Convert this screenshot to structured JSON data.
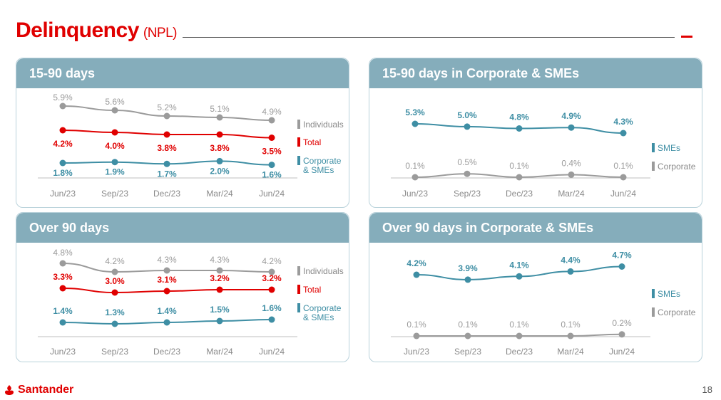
{
  "header": {
    "title": "Delinquency",
    "subtitle": "(NPL)"
  },
  "footer": {
    "brand": "Santander",
    "page_number": "18"
  },
  "colors": {
    "individuals": "#9b9b9b",
    "total": "#e00000",
    "corporate": "#3e8ea4",
    "axis": "#bfbfbf",
    "header_bg": "#85adbb"
  },
  "chart_data": [
    {
      "type": "line",
      "title": "15-90 days",
      "categories": [
        "Jun/23",
        "Sep/23",
        "Dec/23",
        "Mar/24",
        "Jun/24"
      ],
      "series": [
        {
          "name": "Individuals",
          "values": [
            5.9,
            5.6,
            5.2,
            5.1,
            4.9
          ],
          "labels": [
            "5.9%",
            "5.6%",
            "5.2%",
            "5.1%",
            "4.9%"
          ]
        },
        {
          "name": "Total",
          "values": [
            4.2,
            4.0,
            3.8,
            3.8,
            3.5
          ],
          "labels": [
            "4.2%",
            "4.0%",
            "3.8%",
            "3.8%",
            "3.5%"
          ]
        },
        {
          "name": "Corporate & SMEs",
          "values": [
            1.8,
            1.9,
            1.7,
            2.0,
            1.6
          ],
          "labels": [
            "1.8%",
            "1.9%",
            "1.7%",
            "2.0%",
            "1.6%"
          ]
        }
      ],
      "legend": [
        "Individuals",
        "Total",
        "Corporate",
        "& SMEs"
      ]
    },
    {
      "type": "line",
      "title": "15-90 days in Corporate & SMEs",
      "categories": [
        "Jun/23",
        "Sep/23",
        "Dec/23",
        "Mar/24",
        "Jun/24"
      ],
      "series": [
        {
          "name": "SMEs",
          "values": [
            5.3,
            5.0,
            4.8,
            4.9,
            4.3
          ],
          "labels": [
            "5.3%",
            "5.0%",
            "4.8%",
            "4.9%",
            "4.3%"
          ]
        },
        {
          "name": "Corporate",
          "values": [
            0.1,
            0.5,
            0.1,
            0.4,
            0.1
          ],
          "labels": [
            "0.1%",
            "0.5%",
            "0.1%",
            "0.4%",
            "0.1%"
          ]
        }
      ],
      "legend": [
        "SMEs",
        "Corporate"
      ]
    },
    {
      "type": "line",
      "title": "Over 90 days",
      "categories": [
        "Jun/23",
        "Sep/23",
        "Dec/23",
        "Mar/24",
        "Jun/24"
      ],
      "series": [
        {
          "name": "Individuals",
          "values": [
            4.8,
            4.2,
            4.3,
            4.3,
            4.2
          ],
          "labels": [
            "4.8%",
            "4.2%",
            "4.3%",
            "4.3%",
            "4.2%"
          ]
        },
        {
          "name": "Total",
          "values": [
            3.3,
            3.0,
            3.1,
            3.2,
            3.2
          ],
          "labels": [
            "3.3%",
            "3.0%",
            "3.1%",
            "3.2%",
            "3.2%"
          ]
        },
        {
          "name": "Corporate & SMEs",
          "values": [
            1.4,
            1.3,
            1.4,
            1.5,
            1.6
          ],
          "labels": [
            "1.4%",
            "1.3%",
            "1.4%",
            "1.5%",
            "1.6%"
          ]
        }
      ],
      "legend": [
        "Individuals",
        "Total",
        "Corporate",
        "& SMEs"
      ]
    },
    {
      "type": "line",
      "title": "Over 90 days in Corporate & SMEs",
      "categories": [
        "Jun/23",
        "Sep/23",
        "Dec/23",
        "Mar/24",
        "Jun/24"
      ],
      "series": [
        {
          "name": "SMEs",
          "values": [
            4.2,
            3.9,
            4.1,
            4.4,
            4.7
          ],
          "labels": [
            "4.2%",
            "3.9%",
            "4.1%",
            "4.4%",
            "4.7%"
          ]
        },
        {
          "name": "Corporate",
          "values": [
            0.1,
            0.1,
            0.1,
            0.1,
            0.2
          ],
          "labels": [
            "0.1%",
            "0.1%",
            "0.1%",
            "0.1%",
            "0.2%"
          ]
        }
      ],
      "legend": [
        "SMEs",
        "Corporate"
      ]
    }
  ]
}
